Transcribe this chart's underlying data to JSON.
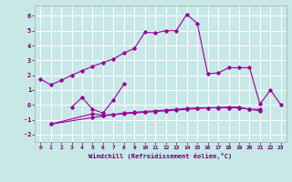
{
  "title": "",
  "xlabel": "Windchill (Refroidissement éolien,°C)",
  "ylabel": "",
  "background_color": "#c8e8e8",
  "grid_color": "#ffffff",
  "line_color": "#990099",
  "xlim": [
    -0.5,
    23.5
  ],
  "ylim": [
    -2.5,
    6.7
  ],
  "xticks": [
    0,
    1,
    2,
    3,
    4,
    5,
    6,
    7,
    8,
    9,
    10,
    11,
    12,
    13,
    14,
    15,
    16,
    17,
    18,
    19,
    20,
    21,
    22,
    23
  ],
  "yticks": [
    -2,
    -1,
    0,
    1,
    2,
    3,
    4,
    5,
    6
  ],
  "line1_x": [
    0,
    1,
    2,
    3,
    4,
    5,
    6,
    7,
    8,
    9,
    10,
    11,
    12,
    13,
    14,
    15,
    16,
    17,
    18,
    19,
    20,
    21,
    22,
    23
  ],
  "line1_y": [
    1.75,
    1.35,
    1.65,
    2.0,
    2.3,
    2.6,
    2.85,
    3.1,
    3.5,
    3.8,
    4.9,
    4.85,
    5.0,
    5.0,
    6.1,
    5.5,
    2.1,
    2.15,
    2.5,
    2.5,
    2.5,
    0.05,
    1.0,
    0.0
  ],
  "line2_x": [
    3,
    4,
    5,
    6,
    7,
    8
  ],
  "line2_y": [
    -0.15,
    0.5,
    -0.3,
    -0.55,
    0.35,
    1.4
  ],
  "line3_x": [
    1,
    5,
    6,
    7,
    8,
    9,
    10,
    11,
    12,
    13,
    14,
    15,
    16,
    17,
    18,
    19,
    20,
    21
  ],
  "line3_y": [
    -1.3,
    -0.6,
    -0.7,
    -0.65,
    -0.6,
    -0.55,
    -0.5,
    -0.45,
    -0.4,
    -0.35,
    -0.3,
    -0.25,
    -0.2,
    -0.18,
    -0.15,
    -0.15,
    -0.3,
    -0.3
  ],
  "line4_x": [
    1,
    5,
    6,
    7,
    8,
    9,
    10,
    11,
    12,
    13,
    14,
    15,
    16,
    17,
    18,
    19,
    20,
    21
  ],
  "line4_y": [
    -1.3,
    -0.85,
    -0.75,
    -0.65,
    -0.55,
    -0.5,
    -0.45,
    -0.4,
    -0.35,
    -0.3,
    -0.25,
    -0.2,
    -0.2,
    -0.2,
    -0.2,
    -0.2,
    -0.3,
    -0.4
  ]
}
